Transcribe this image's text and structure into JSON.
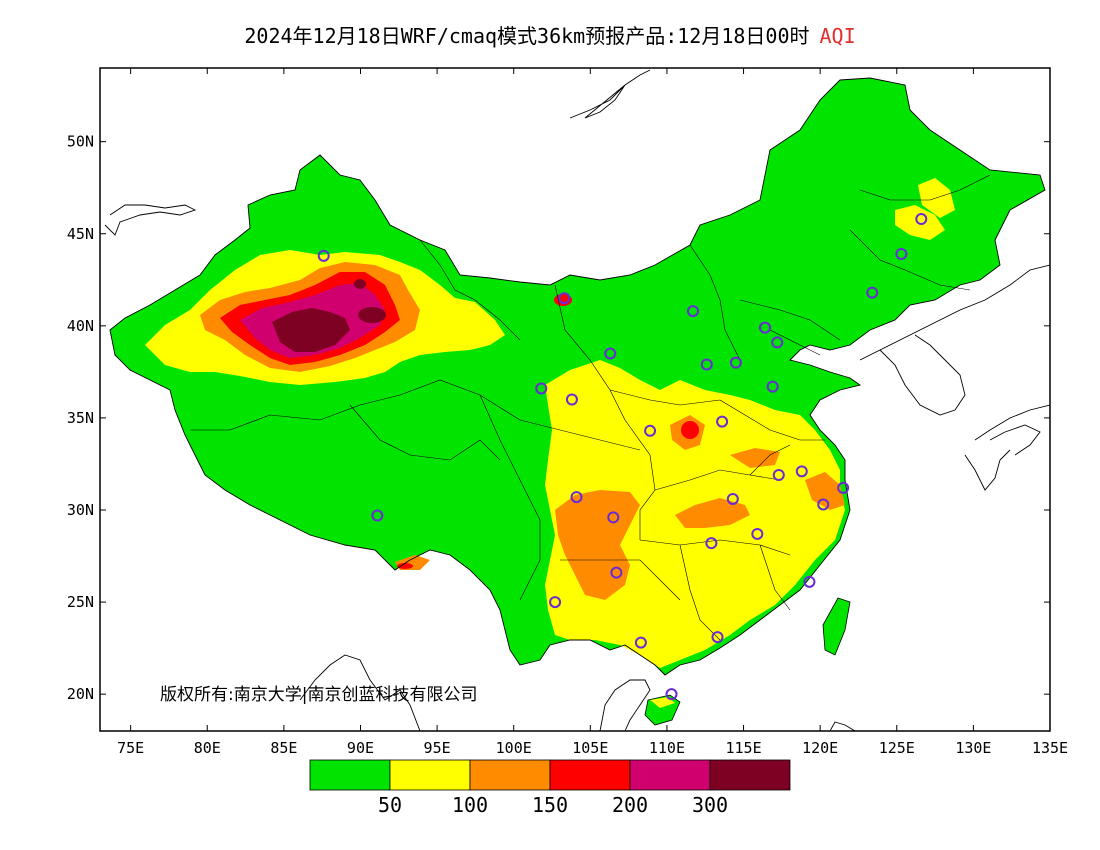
{
  "title": {
    "main": "2024年12月18日WRF/cmaq模式36km预报产品:12月18日00时",
    "variable": "AQI"
  },
  "copyright": "版权所有:南京大学|南京创蓝科技有限公司",
  "axes": {
    "lon_ticks": [
      "75E",
      "80E",
      "85E",
      "90E",
      "95E",
      "100E",
      "105E",
      "110E",
      "115E",
      "120E",
      "125E",
      "130E",
      "135E"
    ],
    "lon_values": [
      75,
      80,
      85,
      90,
      95,
      100,
      105,
      110,
      115,
      120,
      125,
      130,
      135
    ],
    "lat_ticks": [
      "20N",
      "25N",
      "30N",
      "35N",
      "40N",
      "45N",
      "50N"
    ],
    "lat_values": [
      20,
      25,
      30,
      35,
      40,
      45,
      50
    ],
    "lon_range": [
      73,
      135
    ],
    "lat_range": [
      18,
      54
    ]
  },
  "legend": {
    "colors": [
      "#00e400",
      "#ffff00",
      "#ff8c00",
      "#ff0000",
      "#d0006e",
      "#7e0023"
    ],
    "labels": [
      "50",
      "100",
      "150",
      "200",
      "300"
    ]
  },
  "stations": [
    [
      87.6,
      43.8
    ],
    [
      103.8,
      36.0
    ],
    [
      101.8,
      36.6
    ],
    [
      106.3,
      38.5
    ],
    [
      111.7,
      40.8
    ],
    [
      112.6,
      37.9
    ],
    [
      114.5,
      38.0
    ],
    [
      116.4,
      39.9
    ],
    [
      117.2,
      39.1
    ],
    [
      116.9,
      36.7
    ],
    [
      113.6,
      34.8
    ],
    [
      108.9,
      34.3
    ],
    [
      104.1,
      30.7
    ],
    [
      106.5,
      29.6
    ],
    [
      106.7,
      26.6
    ],
    [
      102.7,
      25.0
    ],
    [
      108.3,
      22.8
    ],
    [
      113.3,
      23.1
    ],
    [
      110.3,
      20.0
    ],
    [
      114.3,
      30.6
    ],
    [
      112.9,
      28.2
    ],
    [
      115.9,
      28.7
    ],
    [
      117.3,
      31.9
    ],
    [
      118.8,
      32.1
    ],
    [
      120.2,
      30.3
    ],
    [
      121.5,
      31.2
    ],
    [
      119.3,
      26.1
    ],
    [
      123.4,
      41.8
    ],
    [
      125.3,
      43.9
    ],
    [
      126.6,
      45.8
    ],
    [
      91.1,
      29.7
    ],
    [
      103.3,
      41.5
    ]
  ]
}
